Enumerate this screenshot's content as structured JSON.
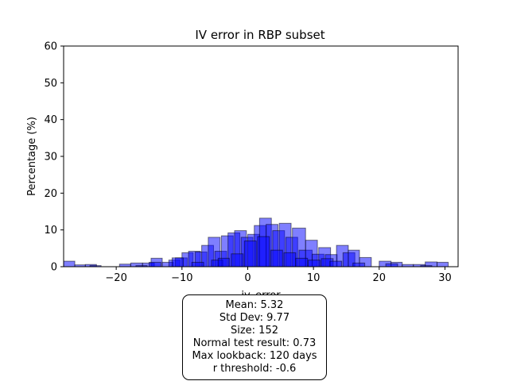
{
  "chart_data": {
    "type": "histogram",
    "title": "IV error in RBP subset",
    "xlabel": "iv_error",
    "ylabel": "Percentage (%)",
    "xlim": [
      -28,
      32
    ],
    "ylim": [
      0,
      60
    ],
    "xticks": [
      -20,
      -10,
      0,
      10,
      20,
      30
    ],
    "yticks": [
      0,
      10,
      20,
      30,
      40,
      50,
      60
    ],
    "grid": false,
    "series": [
      {
        "color": "#0000ff",
        "opacity": 0.5,
        "bins": [
          [
            -28,
            -26.3,
            1.5
          ],
          [
            -26.3,
            -24.7,
            0.5
          ],
          [
            -24.7,
            -23,
            0.6
          ],
          [
            -19.5,
            -17.8,
            0.7
          ],
          [
            -17.8,
            -16,
            1.0
          ],
          [
            -16,
            -14.2,
            1.0
          ],
          [
            -14.7,
            -13,
            2.3
          ],
          [
            -13,
            -11.3,
            1.2
          ],
          [
            -12,
            -10.3,
            1.8
          ],
          [
            -11,
            -9.2,
            2.4
          ],
          [
            -10,
            -8.3,
            3.8
          ],
          [
            -9,
            -7.2,
            4.2
          ],
          [
            -8,
            -6.2,
            4.0
          ],
          [
            -7,
            -5.2,
            5.8
          ],
          [
            -6,
            -4.2,
            8.0
          ],
          [
            -5,
            -3.2,
            4.2
          ],
          [
            -4,
            -2.2,
            8.4
          ],
          [
            -3,
            -1.2,
            9.2
          ],
          [
            -2,
            -0.2,
            9.8
          ],
          [
            -1,
            0.8,
            8.0
          ],
          [
            0,
            1.8,
            8.8
          ],
          [
            1,
            2.8,
            11.2
          ],
          [
            1.8,
            3.6,
            13.2
          ],
          [
            2.8,
            4.6,
            11.5
          ],
          [
            3.8,
            5.6,
            9.8
          ],
          [
            4.8,
            6.6,
            11.8
          ],
          [
            5.8,
            7.6,
            8.0
          ],
          [
            6.8,
            8.8,
            10.5
          ],
          [
            7.8,
            9.8,
            4.5
          ],
          [
            8.8,
            10.6,
            7.2
          ],
          [
            9.8,
            11.6,
            3.4
          ],
          [
            10.8,
            12.6,
            5.2
          ],
          [
            11.8,
            13.6,
            3.3
          ],
          [
            13.5,
            15.3,
            5.8
          ],
          [
            14.5,
            16.3,
            3.8
          ],
          [
            15.3,
            17,
            4.5
          ],
          [
            17,
            18.8,
            2.5
          ],
          [
            20,
            21.8,
            1.5
          ],
          [
            21.8,
            23.5,
            1.2
          ],
          [
            23.5,
            25.2,
            0.6
          ],
          [
            25.2,
            27,
            0.6
          ],
          [
            27,
            28.8,
            1.3
          ],
          [
            28.8,
            30.5,
            1.2
          ],
          [
            -24,
            -22.3,
            0.3
          ],
          [
            -17,
            -15.3,
            0.3
          ],
          [
            -15,
            -13.2,
            1.2
          ],
          [
            -11.5,
            -9.8,
            2.4
          ],
          [
            -8.5,
            -6.7,
            1.2
          ],
          [
            -5.5,
            -3.8,
            1.8
          ],
          [
            -4.5,
            -2.8,
            2.3
          ],
          [
            -2.5,
            -0.7,
            3.5
          ],
          [
            -0.5,
            1.3,
            7.0
          ],
          [
            1.5,
            3.3,
            8.2
          ],
          [
            3.5,
            5.3,
            4.5
          ],
          [
            5.5,
            7.3,
            3.8
          ],
          [
            7.3,
            9.1,
            2.3
          ],
          [
            9.2,
            11,
            1.8
          ],
          [
            11.2,
            13,
            2.2
          ],
          [
            12.5,
            14.3,
            1.5
          ],
          [
            16,
            17.8,
            1.0
          ],
          [
            21,
            22.8,
            0.8
          ],
          [
            26.3,
            28,
            0.3
          ]
        ]
      }
    ],
    "annotation": {
      "lines": [
        "Mean: 5.32",
        "Std Dev: 9.77",
        "Size: 152",
        "Normal test result: 0.73",
        "Max lookback: 120 days",
        "r threshold: -0.6"
      ]
    }
  }
}
